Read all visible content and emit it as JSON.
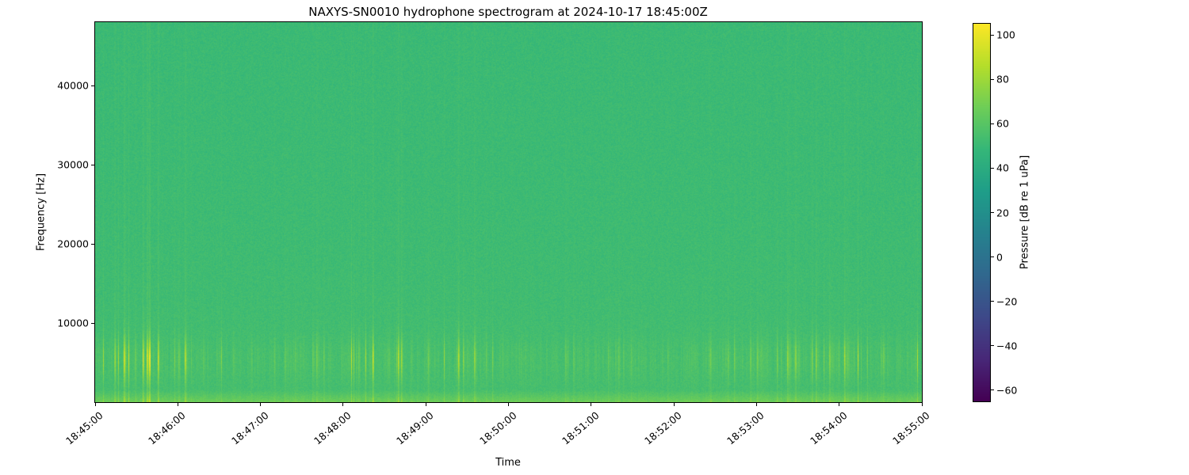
{
  "figure": {
    "background": "#ffffff",
    "text_color": "#000000"
  },
  "chart_data": {
    "type": "heatmap",
    "title": "NAXYS-SN0010 hydrophone spectrogram at 2024-10-17 18:45:00Z",
    "xlabel": "Time",
    "ylabel": "Frequency [Hz]",
    "x_tick_labels": [
      "18:45:00",
      "18:46:00",
      "18:47:00",
      "18:48:00",
      "18:49:00",
      "18:50:00",
      "18:51:00",
      "18:52:00",
      "18:53:00",
      "18:54:00",
      "18:55:00"
    ],
    "x_range_seconds": [
      0,
      600
    ],
    "ylim": [
      0,
      48000
    ],
    "y_ticks": [
      {
        "value": 10000,
        "label": "10000"
      },
      {
        "value": 20000,
        "label": "20000"
      },
      {
        "value": 30000,
        "label": "30000"
      },
      {
        "value": 40000,
        "label": "40000"
      }
    ],
    "grid": false,
    "legend": "none",
    "colorbar": {
      "label": "Pressure [dB re 1 uPa]",
      "vmin": -65,
      "vmax": 105,
      "colormap": "viridis",
      "ticks": [
        {
          "value": 100,
          "label": "100"
        },
        {
          "value": 80,
          "label": "80"
        },
        {
          "value": 60,
          "label": "60"
        },
        {
          "value": 40,
          "label": "40"
        },
        {
          "value": 20,
          "label": "20"
        },
        {
          "value": 0,
          "label": "0"
        },
        {
          "value": -20,
          "label": "−20"
        },
        {
          "value": -40,
          "label": "−40"
        },
        {
          "value": -60,
          "label": "−60"
        }
      ]
    },
    "field": {
      "background_level_db": 50,
      "pixel_noise_db": 7,
      "transient_band_center_hz": 5500,
      "transient_band_sigma_hz": 2600,
      "transient_peak_gain_db": 46,
      "broadband_streak_gain_db": 16,
      "broadband_decay_hz": 14000,
      "bottom_band_cutoff_hz": 1600,
      "bottom_band_gain_db": 12,
      "description": "Mostly uniform ~50 dB green field with many recurring vertical broadband transient streaks, brightest (yellow) between ~3-8 kHz, and a brighter yellow-green band hugging the bottom edge below ~1.5 kHz"
    },
    "viridis_stops": [
      "#440154",
      "#482878",
      "#3e4989",
      "#31688e",
      "#26828e",
      "#1f9e89",
      "#35b779",
      "#6ece58",
      "#b5de2b",
      "#fde725"
    ]
  },
  "layout_note": "matplotlib-style figure: plot axes with x time ticks rotated 45 deg, vertical colorbar at right"
}
